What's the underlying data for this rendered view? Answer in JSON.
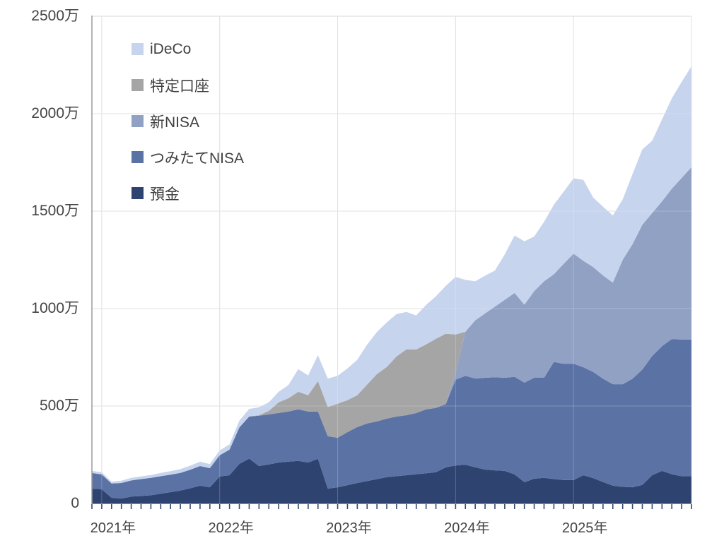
{
  "chart_data": {
    "type": "area",
    "stacked": true,
    "grid": true,
    "value_unit": "万円",
    "x_months": [
      "2020-12",
      "2021-01",
      "2021-02",
      "2021-03",
      "2021-04",
      "2021-05",
      "2021-06",
      "2021-07",
      "2021-08",
      "2021-09",
      "2021-10",
      "2021-11",
      "2021-12",
      "2022-01",
      "2022-02",
      "2022-03",
      "2022-04",
      "2022-05",
      "2022-06",
      "2022-07",
      "2022-08",
      "2022-09",
      "2022-10",
      "2022-11",
      "2022-12",
      "2023-01",
      "2023-02",
      "2023-03",
      "2023-04",
      "2023-05",
      "2023-06",
      "2023-07",
      "2023-08",
      "2023-09",
      "2023-10",
      "2023-11",
      "2023-12",
      "2024-01",
      "2024-02",
      "2024-03",
      "2024-04",
      "2024-05",
      "2024-06",
      "2024-07",
      "2024-08",
      "2024-09",
      "2024-10",
      "2024-11",
      "2024-12",
      "2025-01",
      "2025-02",
      "2025-03",
      "2025-04",
      "2025-05",
      "2025-06",
      "2025-07",
      "2025-08",
      "2025-09",
      "2025-10",
      "2025-11",
      "2025-12",
      "2026-01"
    ],
    "series": [
      {
        "id": "yokin",
        "name": "預金",
        "color": "#2E4370",
        "values": [
          76,
          73,
          29,
          25,
          35,
          38,
          42,
          50,
          58,
          66,
          78,
          91,
          83,
          138,
          145,
          203,
          230,
          192,
          200,
          210,
          215,
          218,
          210,
          229,
          76,
          83,
          94,
          105,
          115,
          125,
          135,
          140,
          145,
          150,
          155,
          160,
          185,
          195,
          199,
          185,
          174,
          170,
          167,
          149,
          109,
          127,
          131,
          125,
          120,
          120,
          145,
          130,
          110,
          91,
          85,
          83,
          95,
          145,
          167,
          150,
          140,
          140
        ]
      },
      {
        "id": "tsumitate-nisa",
        "name": "つみたてNISA",
        "color": "#5B72A5",
        "values": [
          80,
          76,
          73,
          80,
          83,
          87,
          89,
          90,
          90,
          91,
          95,
          101,
          98,
          109,
          131,
          187,
          216,
          258,
          257,
          254,
          257,
          265,
          262,
          243,
          269,
          254,
          272,
          287,
          295,
          296,
          300,
          306,
          308,
          314,
          328,
          330,
          325,
          440,
          456,
          456,
          471,
          478,
          478,
          501,
          511,
          518,
          514,
          601,
          597,
          597,
          554,
          545,
          530,
          521,
          527,
          557,
          592,
          612,
          640,
          694,
          701,
          701
        ]
      },
      {
        "id": "shin-nisa",
        "name": "新NISA",
        "color": "#91A1C4",
        "values": [
          0,
          0,
          0,
          0,
          0,
          0,
          0,
          0,
          0,
          0,
          0,
          0,
          0,
          0,
          0,
          0,
          0,
          0,
          0,
          0,
          0,
          0,
          0,
          0,
          0,
          0,
          0,
          0,
          0,
          0,
          0,
          0,
          0,
          0,
          0,
          0,
          0,
          36,
          226,
          299,
          330,
          362,
          400,
          430,
          400,
          445,
          495,
          450,
          513,
          565,
          546,
          538,
          530,
          521,
          638,
          690,
          743,
          733,
          743,
          771,
          829,
          885
        ]
      },
      {
        "id": "tokutei-koza",
        "name": "特定口座",
        "color": "#A5A5A5",
        "values": [
          0,
          0,
          0,
          0,
          0,
          0,
          0,
          0,
          0,
          0,
          0,
          0,
          0,
          0,
          0,
          0,
          0,
          3,
          18,
          55,
          68,
          90,
          83,
          156,
          150,
          175,
          164,
          163,
          200,
          243,
          265,
          309,
          338,
          327,
          333,
          355,
          361,
          196,
          0,
          0,
          0,
          0,
          0,
          0,
          0,
          0,
          0,
          0,
          0,
          0,
          0,
          0,
          0,
          0,
          0,
          0,
          0,
          0,
          0,
          0,
          0,
          0
        ]
      },
      {
        "id": "ideco",
        "name": "iDeCo",
        "color": "#C7D4ED",
        "values": [
          11,
          11,
          10,
          12,
          13,
          14,
          15,
          17,
          18,
          19,
          21,
          22,
          21,
          25,
          27,
          35,
          39,
          40,
          44,
          54,
          68,
          116,
          102,
          133,
          146,
          143,
          163,
          182,
          205,
          216,
          229,
          217,
          192,
          174,
          203,
          218,
          246,
          295,
          266,
          200,
          194,
          185,
          233,
          295,
          325,
          280,
          305,
          357,
          370,
          386,
          415,
          357,
          353,
          345,
          310,
          360,
          387,
          371,
          420,
          464,
          493,
          517
        ]
      }
    ],
    "legend": {
      "position": "top-left",
      "items": [
        {
          "label": "iDeCo",
          "color": "#C7D4ED"
        },
        {
          "label": "特定口座",
          "color": "#A5A5A5"
        },
        {
          "label": "新NISA",
          "color": "#91A1C4"
        },
        {
          "label": "つみたてNISA",
          "color": "#5B72A5"
        },
        {
          "label": "預金",
          "color": "#2E4370"
        }
      ]
    },
    "y_axis": {
      "min": 0,
      "max": 2500,
      "tick_step": 500,
      "tick_labels": [
        "2500万",
        "2000万",
        "1500万",
        "1000万",
        "500万",
        "0"
      ]
    },
    "x_axis": {
      "tick_labels": [
        "2021年",
        "2022年",
        "2023年",
        "2024年",
        "2025年"
      ],
      "minor_tick_unit": "month"
    },
    "colors": {
      "gridline": "#D9D9D9",
      "axis_line": "#9B9B9B",
      "tick_mark": "#35466E",
      "label_text": "#444444"
    }
  }
}
